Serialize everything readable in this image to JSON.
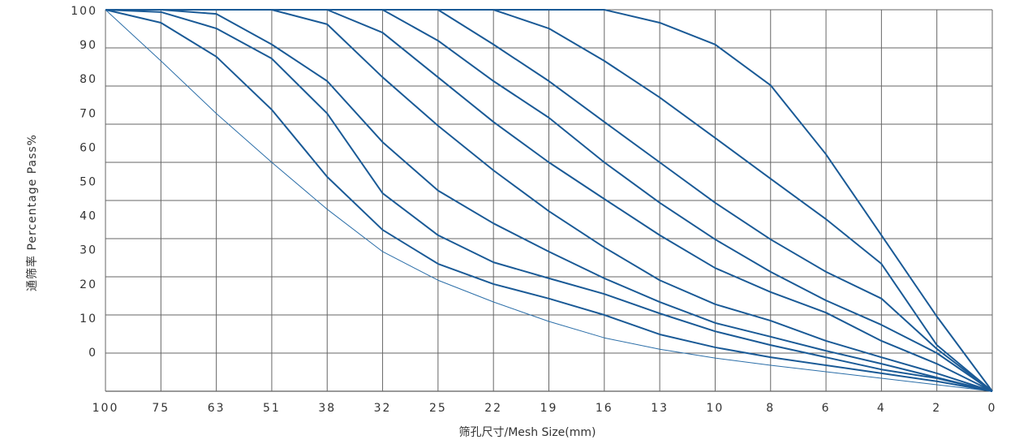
{
  "chart_data": {
    "type": "line",
    "y_label": "通筛率 Percentage Pass%",
    "x_label": "筛孔尺寸/Mesh Size(mm)",
    "categories": [
      "100",
      "75",
      "63",
      "51",
      "38",
      "32",
      "25",
      "22",
      "19",
      "16",
      "13",
      "10",
      "8",
      "6",
      "4",
      "2",
      "0"
    ],
    "ylim": [
      0,
      100
    ],
    "yticks": [
      0,
      10,
      20,
      30,
      40,
      50,
      60,
      70,
      80,
      90,
      100
    ],
    "grid": true,
    "series": [
      {
        "color": "#2b6ea8",
        "line_width": 1,
        "values": [
          100,
          86.6,
          72.8,
          60,
          47.7,
          36.6,
          29.1,
          23.4,
          18.3,
          14,
          11,
          8.7,
          6.8,
          5.1,
          3.4,
          1.7,
          0
        ]
      },
      {
        "color": "#1a5a96",
        "line_width": 2,
        "values": [
          100,
          96.6,
          87.7,
          73.8,
          56.2,
          42.3,
          33.4,
          28.1,
          24.3,
          20,
          14.9,
          11.5,
          8.9,
          6.8,
          4.7,
          2.6,
          0
        ]
      },
      {
        "color": "#1a5a96",
        "line_width": 2,
        "values": [
          100,
          99.4,
          95.1,
          87.2,
          72.8,
          51.9,
          40.9,
          33.8,
          29.6,
          25.5,
          20.4,
          15.7,
          12.1,
          8.9,
          5.7,
          3.4,
          0
        ]
      },
      {
        "color": "#1a5a96",
        "line_width": 2,
        "values": [
          100,
          100,
          98.9,
          90.9,
          81.3,
          65.3,
          52.6,
          44,
          36.6,
          29.6,
          23.4,
          17.9,
          14.3,
          10.6,
          7.2,
          3.6,
          0
        ]
      },
      {
        "color": "#1a5a96",
        "line_width": 2,
        "values": [
          100,
          100,
          100,
          100,
          96.2,
          82.3,
          69.6,
          57.9,
          47.2,
          37.7,
          29.1,
          22.8,
          18.5,
          13.2,
          8.9,
          4.7,
          0
        ]
      },
      {
        "color": "#1a5a96",
        "line_width": 2,
        "values": [
          100,
          100,
          100,
          100,
          100,
          94,
          82.3,
          70.6,
          60,
          50.4,
          40.9,
          32.3,
          26,
          20.6,
          13.2,
          7.2,
          0
        ]
      },
      {
        "color": "#1a5a96",
        "line_width": 2,
        "values": [
          100,
          100,
          100,
          100,
          100,
          100,
          91.9,
          81.3,
          71.7,
          60,
          49.4,
          39.8,
          31.3,
          23.8,
          17.4,
          10,
          0
        ]
      },
      {
        "color": "#1a5a96",
        "line_width": 2,
        "values": [
          100,
          100,
          100,
          100,
          100,
          100,
          100,
          90.9,
          81.3,
          70.6,
          60,
          49.4,
          39.8,
          31.3,
          24.3,
          11.1,
          0
        ]
      },
      {
        "color": "#1a5a96",
        "line_width": 2,
        "values": [
          100,
          100,
          100,
          100,
          100,
          100,
          100,
          100,
          95.1,
          86.6,
          77,
          66.4,
          55.7,
          45.1,
          33.4,
          12.1,
          0
        ]
      },
      {
        "color": "#1a5a96",
        "line_width": 2,
        "values": [
          100,
          100,
          100,
          100,
          100,
          100,
          100,
          100,
          100,
          100,
          96.6,
          90.9,
          80.2,
          62.1,
          40.9,
          19.6,
          0
        ]
      }
    ]
  }
}
